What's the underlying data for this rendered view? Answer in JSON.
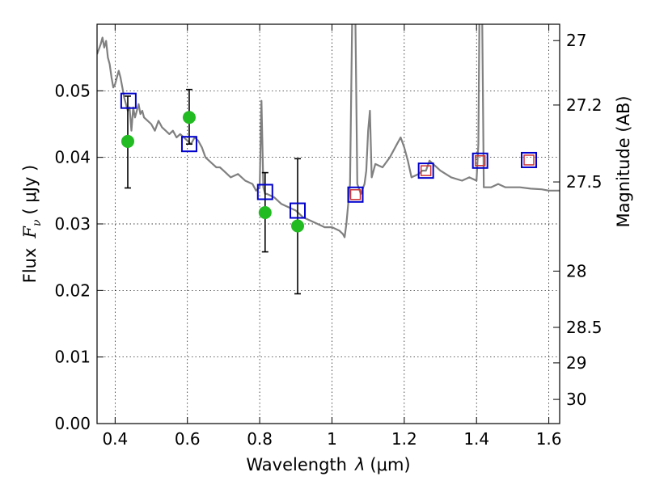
{
  "chart_data": {
    "type": "scatter",
    "title": "",
    "xlabel": "Wavelength",
    "xlabel_symbol": "λ",
    "xlabel_unit": "(μm)",
    "ylabel": "Flux",
    "ylabel_symbol": "F",
    "ylabel_subscript": "ν",
    "ylabel_unit": "( μJy )",
    "y2label": "Magnitude (AB)",
    "xlim": [
      0.35,
      1.63
    ],
    "ylim": [
      0.0,
      0.06
    ],
    "x_ticks": [
      0.4,
      0.6,
      0.8,
      1.0,
      1.2,
      1.4,
      1.6
    ],
    "x_tick_labels": [
      "0.4",
      "0.6",
      "0.8",
      "1",
      "1.2",
      "1.4",
      "1.6"
    ],
    "y_ticks": [
      0.0,
      0.01,
      0.02,
      0.03,
      0.04,
      0.05
    ],
    "y_tick_labels": [
      "0.00",
      "0.01",
      "0.02",
      "0.03",
      "0.04",
      "0.05"
    ],
    "y2_ticks": [
      27,
      27.2,
      27.5,
      28,
      28.5,
      29,
      30
    ],
    "y2_tick_labels": [
      "27",
      "27.2",
      "27.5",
      "28",
      "28.5",
      "29",
      "30"
    ],
    "grid": true,
    "colors": {
      "model": "#808080",
      "observed": "#22bb22",
      "errorbar": "#000000",
      "model_photometry": "#0000cc",
      "model_photometry_inner": "#cc3333"
    },
    "series": [
      {
        "kind": "model_spectrum",
        "x": [
          0.35,
          0.36,
          0.365,
          0.37,
          0.375,
          0.38,
          0.385,
          0.39,
          0.395,
          0.4,
          0.41,
          0.415,
          0.42,
          0.425,
          0.43,
          0.435,
          0.44,
          0.445,
          0.45,
          0.455,
          0.46,
          0.465,
          0.47,
          0.475,
          0.48,
          0.49,
          0.5,
          0.51,
          0.52,
          0.53,
          0.54,
          0.55,
          0.56,
          0.57,
          0.58,
          0.59,
          0.6,
          0.61,
          0.62,
          0.63,
          0.64,
          0.65,
          0.66,
          0.67,
          0.68,
          0.69,
          0.7,
          0.72,
          0.74,
          0.76,
          0.78,
          0.79,
          0.8,
          0.805,
          0.81,
          0.815,
          0.82,
          0.84,
          0.86,
          0.88,
          0.9,
          0.92,
          0.94,
          0.96,
          0.98,
          1.0,
          1.02,
          1.03,
          1.035,
          1.04,
          1.05,
          1.06,
          1.065,
          1.07,
          1.08,
          1.09,
          1.095,
          1.1,
          1.105,
          1.11,
          1.12,
          1.14,
          1.16,
          1.18,
          1.19,
          1.2,
          1.21,
          1.22,
          1.24,
          1.25,
          1.26,
          1.27,
          1.3,
          1.33,
          1.36,
          1.38,
          1.4,
          1.405,
          1.41,
          1.415,
          1.42,
          1.44,
          1.46,
          1.48,
          1.5,
          1.52,
          1.55,
          1.58,
          1.6,
          1.63
        ],
        "y": [
          0.0555,
          0.057,
          0.058,
          0.0565,
          0.0575,
          0.055,
          0.054,
          0.052,
          0.0505,
          0.051,
          0.053,
          0.052,
          0.0505,
          0.049,
          0.048,
          0.047,
          0.0475,
          0.044,
          0.0475,
          0.046,
          0.047,
          0.048,
          0.0465,
          0.047,
          0.046,
          0.0455,
          0.045,
          0.044,
          0.0455,
          0.0445,
          0.044,
          0.0435,
          0.044,
          0.043,
          0.0435,
          0.043,
          0.0425,
          0.042,
          0.043,
          0.0425,
          0.0415,
          0.04,
          0.0395,
          0.039,
          0.0385,
          0.0385,
          0.038,
          0.037,
          0.0375,
          0.0365,
          0.036,
          0.035,
          0.0355,
          0.0485,
          0.0355,
          0.0345,
          0.0345,
          0.034,
          0.033,
          0.0325,
          0.032,
          0.031,
          0.0305,
          0.03,
          0.0295,
          0.0295,
          0.029,
          0.0285,
          0.028,
          0.03,
          0.036,
          0.078,
          0.06,
          0.036,
          0.0345,
          0.036,
          0.038,
          0.044,
          0.047,
          0.037,
          0.039,
          0.0385,
          0.04,
          0.042,
          0.043,
          0.0415,
          0.0395,
          0.037,
          0.0375,
          0.038,
          0.038,
          0.0395,
          0.038,
          0.037,
          0.0365,
          0.037,
          0.0365,
          0.042,
          0.075,
          0.065,
          0.0355,
          0.0355,
          0.036,
          0.0355,
          0.0355,
          0.0355,
          0.0353,
          0.0352,
          0.035,
          0.035
        ]
      },
      {
        "kind": "observed",
        "x": [
          0.435,
          0.605,
          0.815,
          0.905
        ],
        "y": [
          0.0424,
          0.046,
          0.0317,
          0.0297
        ],
        "err_low": [
          0.0354,
          0.042,
          0.0258,
          0.0195
        ],
        "err_high": [
          0.0492,
          0.0502,
          0.0377,
          0.0398
        ]
      },
      {
        "kind": "model_photometry",
        "x": [
          0.437,
          0.605,
          0.815,
          0.905,
          1.065,
          1.26,
          1.41,
          1.545
        ],
        "y": [
          0.0485,
          0.042,
          0.0348,
          0.032,
          0.0344,
          0.038,
          0.0395,
          0.0396
        ]
      },
      {
        "kind": "model_photometry_inner",
        "x": [
          1.065,
          1.26,
          1.41,
          1.545
        ],
        "y": [
          0.0344,
          0.038,
          0.0395,
          0.0396
        ]
      }
    ]
  }
}
